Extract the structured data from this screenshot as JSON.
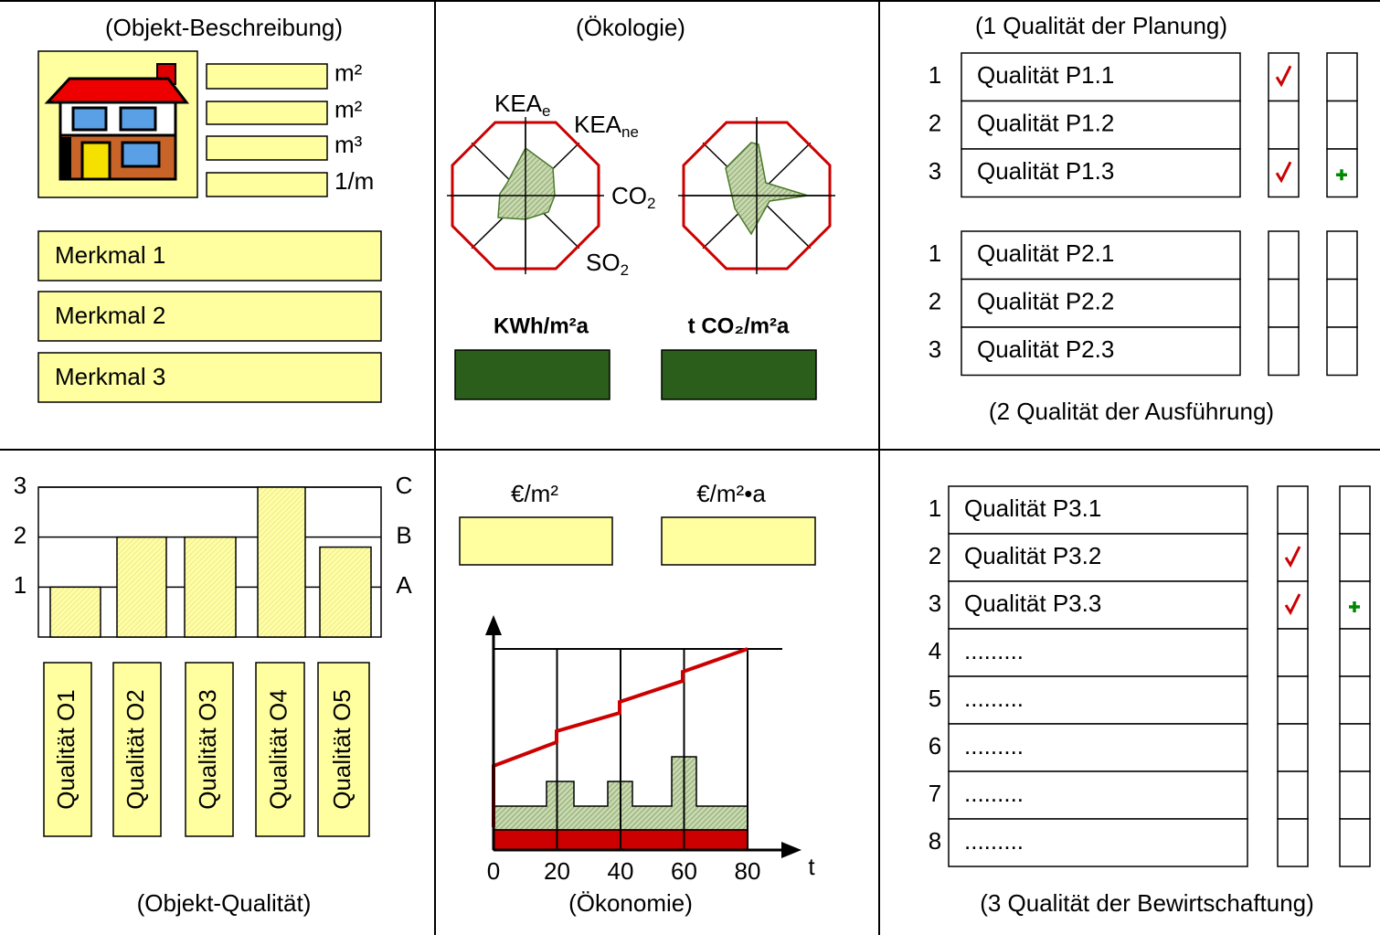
{
  "description": {
    "title": "(Objekt-Beschreibung)",
    "units": [
      "m²",
      "m²",
      "m³",
      "1/m"
    ],
    "features": [
      "Merkmal 1",
      "Merkmal 2",
      "Merkmal 3"
    ]
  },
  "ecology": {
    "title": "(Ökologie)",
    "radar_labels": [
      [
        "KEA",
        "e"
      ],
      [
        "KEA",
        "ne"
      ],
      [
        "CO",
        "2"
      ],
      [
        "SO",
        "2"
      ]
    ],
    "units": [
      "KWh/m²a",
      "t CO₂/m²a"
    ]
  },
  "planning": {
    "title": "(1 Qualität der Planung)",
    "rows": [
      {
        "number": "1",
        "label": "Qualität P1.1",
        "check": true,
        "plus": false
      },
      {
        "number": "2",
        "label": "Qualität P1.2",
        "check": false,
        "plus": false
      },
      {
        "number": "3",
        "label": "Qualität P1.3",
        "check": true,
        "plus": true
      }
    ]
  },
  "execution": {
    "title": "(2 Qualität der Ausführung)",
    "rows": [
      {
        "number": "1",
        "label": "Qualität P2.1",
        "check": false,
        "plus": false
      },
      {
        "number": "2",
        "label": "Qualität P2.2",
        "check": false,
        "plus": false
      },
      {
        "number": "3",
        "label": "Qualität P2.3",
        "check": false,
        "plus": false
      }
    ]
  },
  "quality": {
    "type": "bar",
    "title": "(Objekt-Qualität)",
    "categories": [
      "Qualität O1",
      "Qualität O2",
      "Qualität O3",
      "Qualität O4",
      "Qualität O5"
    ],
    "values": [
      1,
      2,
      2,
      3,
      1.8
    ],
    "ylim": [
      0,
      3
    ],
    "yticks": [
      1,
      2,
      3
    ],
    "grades": [
      "A",
      "B",
      "C"
    ]
  },
  "economy": {
    "title": "(Ökonomie)",
    "units": [
      "€/m²",
      "€/m²•a"
    ],
    "xlim": [
      0,
      80
    ],
    "xticks": [
      0,
      20,
      40,
      60,
      80
    ],
    "xlabel": "t"
  },
  "operation": {
    "title": "(3 Qualität der Bewirtschaftung)",
    "rows": [
      {
        "number": "1",
        "label": "Qualität P3.1",
        "check": false,
        "plus": false
      },
      {
        "number": "2",
        "label": "Qualität P3.2",
        "check": true,
        "plus": false
      },
      {
        "number": "3",
        "label": "Qualität P3.3",
        "check": true,
        "plus": true
      },
      {
        "number": "4",
        "label": ".........",
        "check": false,
        "plus": false
      },
      {
        "number": "5",
        "label": ".........",
        "check": false,
        "plus": false
      },
      {
        "number": "6",
        "label": ".........",
        "check": false,
        "plus": false
      },
      {
        "number": "7",
        "label": ".........",
        "check": false,
        "plus": false
      },
      {
        "number": "8",
        "label": ".........",
        "check": false,
        "plus": false
      }
    ]
  }
}
